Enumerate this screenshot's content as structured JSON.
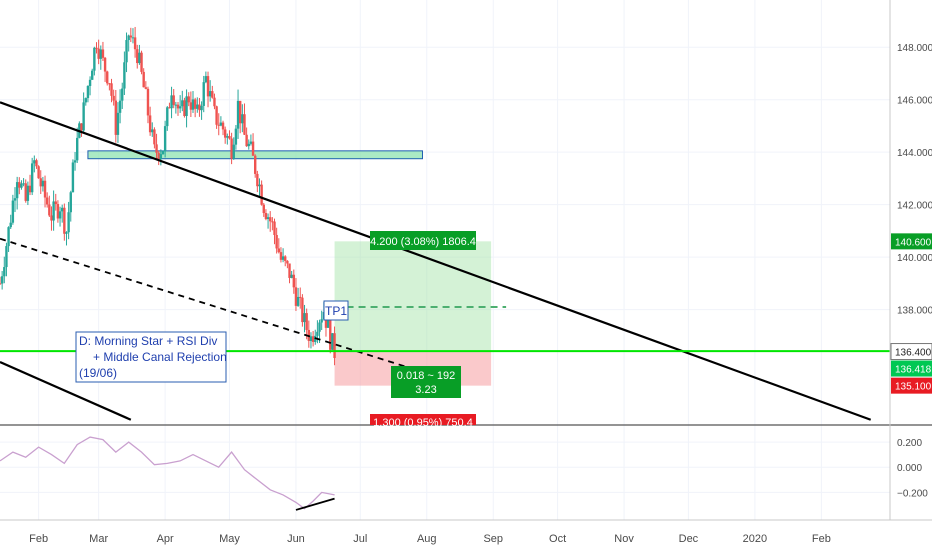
{
  "chart_data": [
    {
      "type": "candlestick",
      "pair_hint": "",
      "ylim": [
        133.6,
        149.8
      ],
      "x_range": [
        "2019-01-14",
        "2020-03-04"
      ],
      "y_ticks": [
        "148.000",
        "146.000",
        "144.000",
        "142.000",
        "140.000",
        "138.000"
      ],
      "x_ticks": [
        {
          "date": "2019-02-01",
          "label": "Feb"
        },
        {
          "date": "2019-03-01",
          "label": "Mar"
        },
        {
          "date": "2019-04-01",
          "label": "Apr"
        },
        {
          "date": "2019-05-01",
          "label": "May"
        },
        {
          "date": "2019-06-01",
          "label": "Jun"
        },
        {
          "date": "2019-07-01",
          "label": "Jul"
        },
        {
          "date": "2019-08-01",
          "label": "Aug"
        },
        {
          "date": "2019-09-01",
          "label": "Sep"
        },
        {
          "date": "2019-10-01",
          "label": "Oct"
        },
        {
          "date": "2019-11-01",
          "label": "Nov"
        },
        {
          "date": "2019-12-01",
          "label": "Dec"
        },
        {
          "date": "2020-01-01",
          "label": "2020"
        },
        {
          "date": "2020-02-01",
          "label": "Feb"
        }
      ],
      "price_path": [
        [
          "2019-01-14",
          139.0
        ],
        [
          "2019-01-18",
          141.0
        ],
        [
          "2019-01-22",
          143.2
        ],
        [
          "2019-01-26",
          142.1
        ],
        [
          "2019-01-30",
          143.6
        ],
        [
          "2019-02-03",
          142.5
        ],
        [
          "2019-02-07",
          141.6
        ],
        [
          "2019-02-11",
          142.0
        ],
        [
          "2019-02-14",
          141.0
        ],
        [
          "2019-02-18",
          144.0
        ],
        [
          "2019-02-22",
          145.6
        ],
        [
          "2019-02-25",
          147.0
        ],
        [
          "2019-02-28",
          148.3
        ],
        [
          "2019-03-03",
          147.4
        ],
        [
          "2019-03-06",
          146.8
        ],
        [
          "2019-03-09",
          145.0
        ],
        [
          "2019-03-12",
          146.5
        ],
        [
          "2019-03-15",
          148.5
        ],
        [
          "2019-03-19",
          147.8
        ],
        [
          "2019-03-23",
          146.0
        ],
        [
          "2019-03-27",
          144.0
        ],
        [
          "2019-03-31",
          144.2
        ],
        [
          "2019-04-04",
          146.5
        ],
        [
          "2019-04-08",
          145.4
        ],
        [
          "2019-04-12",
          146.1
        ],
        [
          "2019-04-16",
          145.4
        ],
        [
          "2019-04-20",
          146.8
        ],
        [
          "2019-04-24",
          145.4
        ],
        [
          "2019-04-28",
          144.9
        ],
        [
          "2019-05-02",
          144.2
        ],
        [
          "2019-05-05",
          145.8
        ],
        [
          "2019-05-08",
          144.6
        ],
        [
          "2019-05-11",
          144.0
        ],
        [
          "2019-05-14",
          143.1
        ],
        [
          "2019-05-17",
          142.0
        ],
        [
          "2019-05-21",
          141.2
        ],
        [
          "2019-05-25",
          139.9
        ],
        [
          "2019-05-29",
          139.4
        ],
        [
          "2019-06-02",
          138.3
        ],
        [
          "2019-06-05",
          137.5
        ],
        [
          "2019-06-08",
          136.9
        ],
        [
          "2019-06-11",
          137.6
        ],
        [
          "2019-06-14",
          138.0
        ],
        [
          "2019-06-17",
          136.9
        ],
        [
          "2019-06-19",
          136.4
        ]
      ],
      "resistance_zone": {
        "from": "2019-02-24",
        "to": "2019-07-30",
        "y0": 143.75,
        "y1": 144.05
      },
      "channel_lines": [
        {
          "style": "solid",
          "p1": [
            "2019-01-14",
            145.9
          ],
          "p2": [
            "2020-02-24",
            133.8
          ]
        },
        {
          "style": "dashed",
          "p1": [
            "2019-01-14",
            140.7
          ],
          "p2": [
            "2019-07-27",
            135.7
          ]
        },
        {
          "style": "solid",
          "p1": [
            "2019-01-14",
            136.0
          ],
          "p2": [
            "2019-03-16",
            133.8
          ]
        }
      ],
      "horizontal_line": {
        "y": 136.418,
        "color": "#00e600"
      },
      "tp_line": {
        "y": 138.1,
        "from": "2019-06-19",
        "to": "2019-08-31"
      },
      "position": {
        "from": "2019-06-19",
        "to": "2019-08-31",
        "entry": 136.4,
        "target": 140.6,
        "stop": 135.1,
        "target_label": "4.200 (3.08%) 1806.4",
        "center_label_1": "0.018 ~ 192",
        "center_label_2": "3.23",
        "stop_label": "1.300 (0.95%) 750.4"
      },
      "tp_label": "TP1",
      "note": {
        "line1": "D: Morning Star + RSI Div",
        "line2": "+ Middle Canal Rejection",
        "line3": "(19/06)"
      },
      "price_tags": [
        {
          "value": "140.600",
          "color": "#089e26"
        },
        {
          "value": "136.400",
          "color": "#ffffff"
        },
        {
          "value": "136.418",
          "color": "#00c853"
        },
        {
          "value": "135.100",
          "color": "#e81b23"
        }
      ]
    },
    {
      "type": "line",
      "ylim": [
        -0.42,
        0.32
      ],
      "y_ticks": [
        "0.200",
        "0.000",
        "−0.200"
      ],
      "series_color": "#c9a0cf",
      "series": [
        [
          "2019-01-14",
          0.05
        ],
        [
          "2019-01-20",
          0.12
        ],
        [
          "2019-01-26",
          0.08
        ],
        [
          "2019-02-01",
          0.16
        ],
        [
          "2019-02-07",
          0.1
        ],
        [
          "2019-02-13",
          0.03
        ],
        [
          "2019-02-19",
          0.18
        ],
        [
          "2019-02-25",
          0.24
        ],
        [
          "2019-03-03",
          0.22
        ],
        [
          "2019-03-09",
          0.12
        ],
        [
          "2019-03-15",
          0.2
        ],
        [
          "2019-03-21",
          0.12
        ],
        [
          "2019-03-27",
          0.02
        ],
        [
          "2019-04-02",
          0.03
        ],
        [
          "2019-04-08",
          0.05
        ],
        [
          "2019-04-14",
          0.1
        ],
        [
          "2019-04-20",
          0.05
        ],
        [
          "2019-04-26",
          0.0
        ],
        [
          "2019-05-02",
          0.12
        ],
        [
          "2019-05-08",
          -0.02
        ],
        [
          "2019-05-14",
          -0.1
        ],
        [
          "2019-05-20",
          -0.18
        ],
        [
          "2019-05-26",
          -0.22
        ],
        [
          "2019-06-01",
          -0.28
        ],
        [
          "2019-06-05",
          -0.33
        ],
        [
          "2019-06-09",
          -0.27
        ],
        [
          "2019-06-13",
          -0.2
        ],
        [
          "2019-06-19",
          -0.22
        ]
      ],
      "divergence_line": {
        "p1": [
          "2019-06-01",
          -0.34
        ],
        "p2": [
          "2019-06-19",
          -0.25
        ]
      }
    }
  ]
}
